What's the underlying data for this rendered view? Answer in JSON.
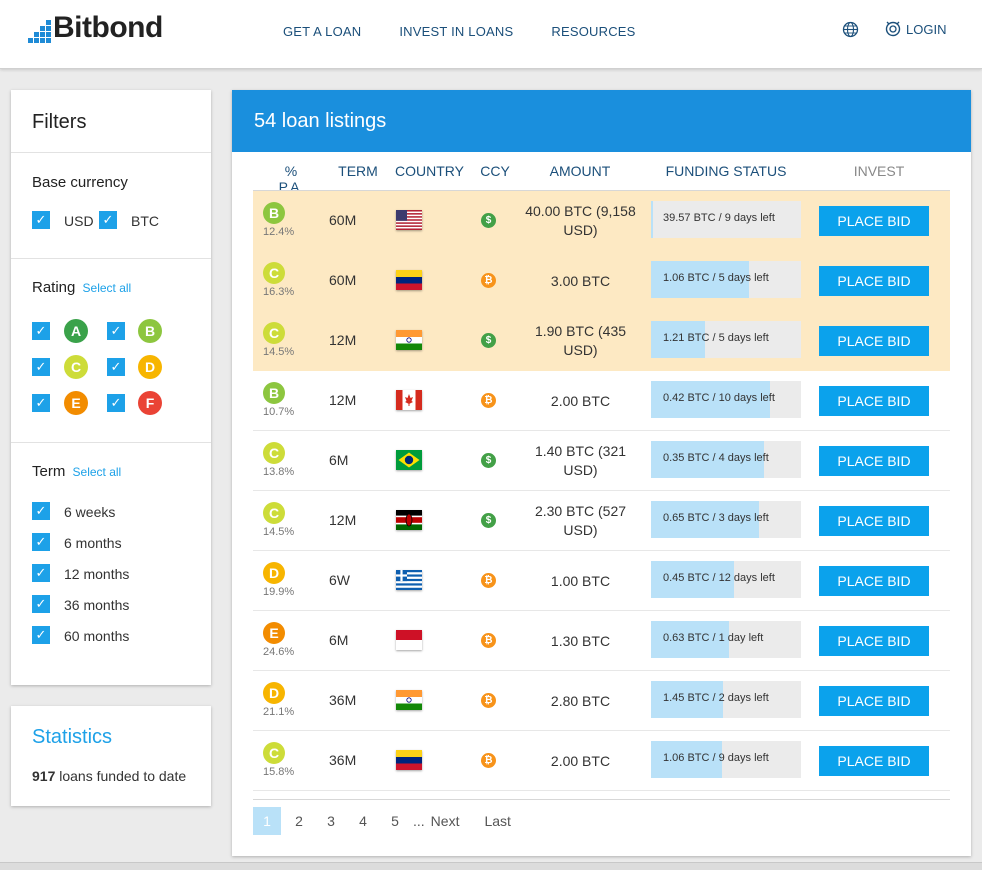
{
  "brand": {
    "name": "Bitbond"
  },
  "nav": [
    "GET A LOAN",
    "INVEST IN LOANS",
    "RESOURCES"
  ],
  "header": {
    "login": "LOGIN",
    "globe_icon": "globe-icon",
    "login_icon": "user-icon"
  },
  "filters": {
    "title": "Filters",
    "base_currency": {
      "title": "Base currency",
      "options": [
        "USD",
        "BTC"
      ]
    },
    "rating": {
      "title": "Rating",
      "select_all": "Select all",
      "grades": [
        "A",
        "B",
        "C",
        "D",
        "E",
        "F"
      ]
    },
    "term": {
      "title": "Term",
      "select_all": "Select all",
      "options": [
        "6 weeks",
        "6 months",
        "12 months",
        "36 months",
        "60 months"
      ]
    }
  },
  "statistics": {
    "title": "Statistics",
    "count": "917",
    "text": "loans funded to date"
  },
  "listings": {
    "title": "54 loan listings",
    "columns": [
      "% P.A.",
      "TERM",
      "COUNTRY",
      "CCY",
      "AMOUNT",
      "FUNDING STATUS",
      "INVEST"
    ],
    "bid_label": "PLACE BID",
    "rows": [
      {
        "grade": "B",
        "rate": "12.4%",
        "term": "60M",
        "country": "US",
        "ccy": "$",
        "amount": "40.00 BTC (9,158 USD)",
        "funding": "39.57 BTC / 9 days left",
        "progress": 0.01,
        "highlight": true
      },
      {
        "grade": "C",
        "rate": "16.3%",
        "term": "60M",
        "country": "VE",
        "ccy": "₿",
        "amount": "3.00 BTC",
        "funding": "1.06 BTC / 5 days left",
        "progress": 0.65,
        "highlight": true
      },
      {
        "grade": "C",
        "rate": "14.5%",
        "term": "12M",
        "country": "IN",
        "ccy": "$",
        "amount": "1.90 BTC (435 USD)",
        "funding": "1.21 BTC / 5 days left",
        "progress": 0.36,
        "highlight": true
      },
      {
        "grade": "B",
        "rate": "10.7%",
        "term": "12M",
        "country": "CA",
        "ccy": "₿",
        "amount": "2.00 BTC",
        "funding": "0.42 BTC / 10 days left",
        "progress": 0.79,
        "highlight": false
      },
      {
        "grade": "C",
        "rate": "13.8%",
        "term": "6M",
        "country": "BR",
        "ccy": "$",
        "amount": "1.40 BTC (321 USD)",
        "funding": "0.35 BTC / 4 days left",
        "progress": 0.75,
        "highlight": false
      },
      {
        "grade": "C",
        "rate": "14.5%",
        "term": "12M",
        "country": "KE",
        "ccy": "$",
        "amount": "2.30 BTC (527 USD)",
        "funding": "0.65 BTC / 3 days left",
        "progress": 0.72,
        "highlight": false
      },
      {
        "grade": "D",
        "rate": "19.9%",
        "term": "6W",
        "country": "GR",
        "ccy": "₿",
        "amount": "1.00 BTC",
        "funding": "0.45 BTC / 12 days left",
        "progress": 0.55,
        "highlight": false
      },
      {
        "grade": "E",
        "rate": "24.6%",
        "term": "6M",
        "country": "ID",
        "ccy": "₿",
        "amount": "1.30 BTC",
        "funding": "0.63 BTC / 1 day left",
        "progress": 0.52,
        "highlight": false
      },
      {
        "grade": "D",
        "rate": "21.1%",
        "term": "36M",
        "country": "IN",
        "ccy": "₿",
        "amount": "2.80 BTC",
        "funding": "1.45 BTC / 2 days left",
        "progress": 0.48,
        "highlight": false
      },
      {
        "grade": "C",
        "rate": "15.8%",
        "term": "36M",
        "country": "VE",
        "ccy": "₿",
        "amount": "2.00 BTC",
        "funding": "1.06 BTC / 9 days left",
        "progress": 0.47,
        "highlight": false
      }
    ]
  },
  "pagination": {
    "pages": [
      "1",
      "2",
      "3",
      "4",
      "5"
    ],
    "ellipsis": "...",
    "next": "Next",
    "last": "Last",
    "current": "1"
  },
  "colors": {
    "accent": "#1da1e8",
    "header_blue": "#1a8fdd",
    "grade_A": "#3aa24a",
    "grade_B": "#8dc63f",
    "grade_C": "#cddc39",
    "grade_D": "#f7b500",
    "grade_E": "#f28c00",
    "grade_F": "#ea4335",
    "usd_icon": "#43a047",
    "btc_icon": "#f7931a"
  }
}
